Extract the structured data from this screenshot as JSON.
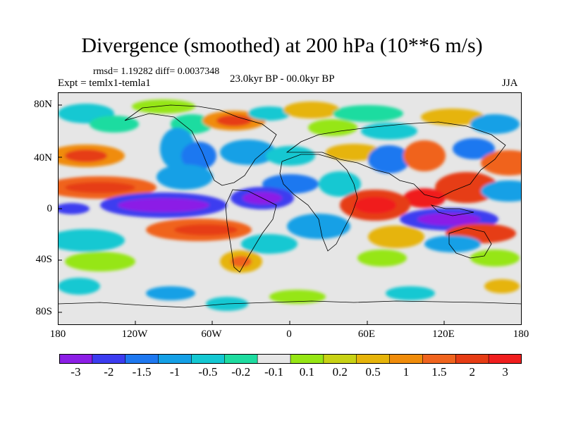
{
  "figure": {
    "title": "Divergence (smoothed) at 200 hPa (10**6 m/s)",
    "stats": "rmsd= 1.19282 diff= 0.0037348",
    "experiment": "Expt = temlx1-temla1",
    "period": "23.0kyr BP - 00.0kyr BP",
    "season": "JJA"
  },
  "map": {
    "projection": "cylindrical equidistant",
    "lon_range": [
      -180,
      180
    ],
    "lat_range": [
      -90,
      90
    ],
    "x_tick_labels": [
      "180",
      "120W",
      "60W",
      "0",
      "60E",
      "120E",
      "180"
    ],
    "y_tick_labels": [
      "80N",
      "40N",
      "0",
      "40S",
      "80S"
    ]
  },
  "colorbar": {
    "labels": [
      "-3",
      "-2",
      "-1.5",
      "-1",
      "-0.5",
      "-0.2",
      "-0.1",
      "0.1",
      "0.2",
      "0.5",
      "1",
      "1.5",
      "2",
      "3"
    ],
    "colors": [
      "#8c1ee6",
      "#3c3cf0",
      "#1e78f0",
      "#14a0e6",
      "#14c8d2",
      "#1edca0",
      "#e6e6e6",
      "#96e614",
      "#c8d214",
      "#e6b40a",
      "#f08c0a",
      "#f0641e",
      "#e63c14",
      "#f01e1e"
    ]
  }
}
